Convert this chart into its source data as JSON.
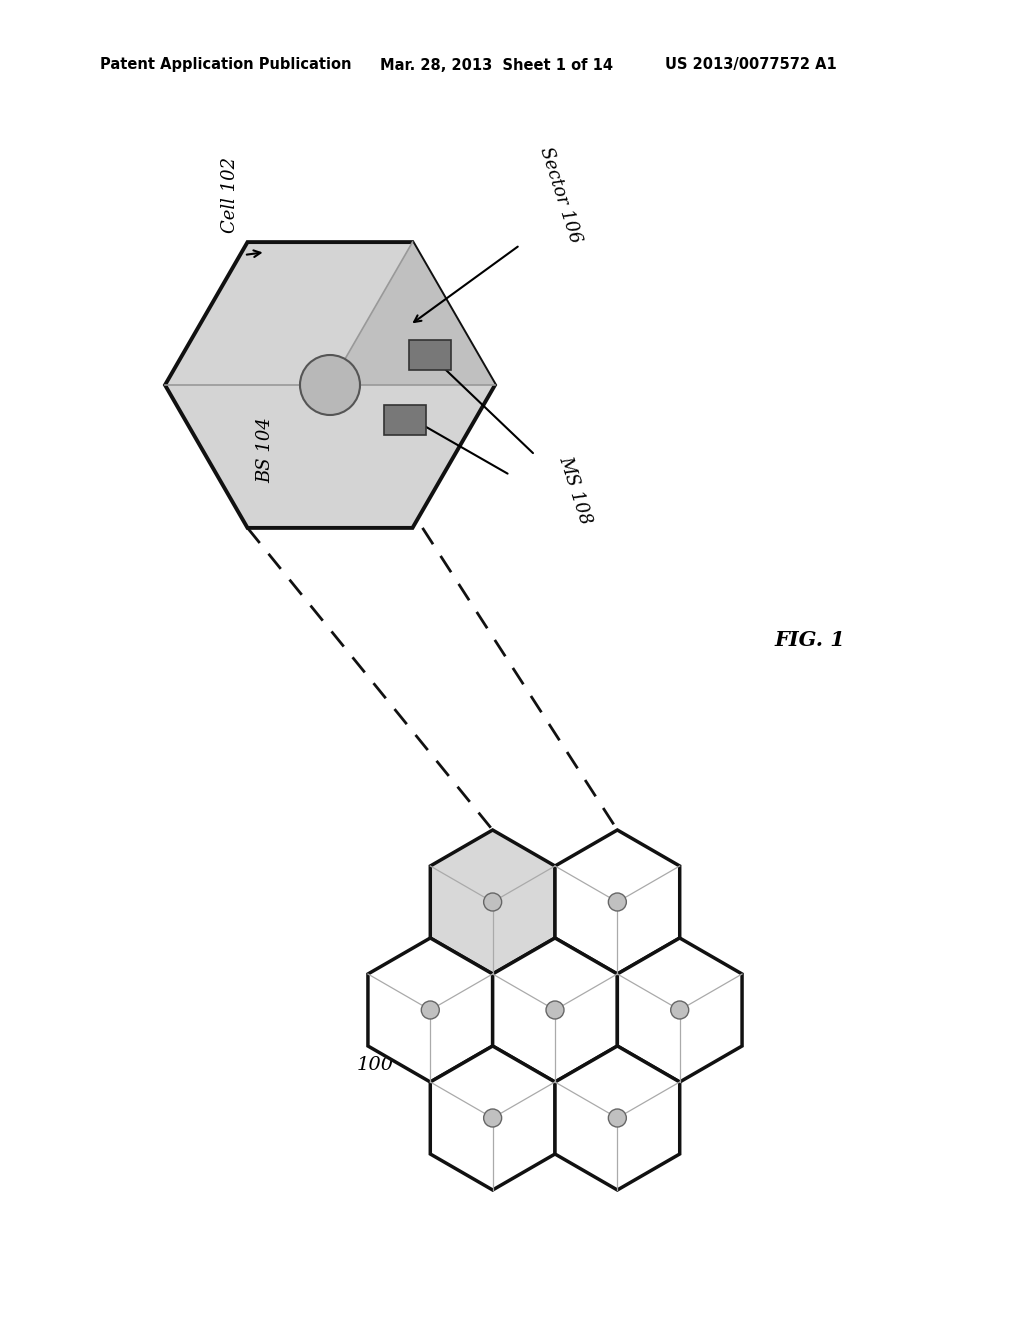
{
  "bg_color": "#ffffff",
  "header_left": "Patent Application Publication",
  "header_mid": "Mar. 28, 2013  Sheet 1 of 14",
  "header_right": "US 2013/0077572 A1",
  "fig_label": "FIG. 1",
  "label_100": "100",
  "label_cell": "Cell 102",
  "label_bs": "BS 104",
  "label_sector": "Sector 106",
  "label_ms": "MS 108",
  "hex_fill_light": "#d4d4d4",
  "hex_fill_sector": "#c0c0c0",
  "hex_stroke": "#111111",
  "circle_fill": "#b8b8b8",
  "small_rect_fill": "#787878",
  "sector_line_color": "#888888",
  "cluster_hex_fill": "#ffffff",
  "cluster_highlighted_fill": "#d8d8d8",
  "cluster_circle_fill": "#c0c0c0"
}
